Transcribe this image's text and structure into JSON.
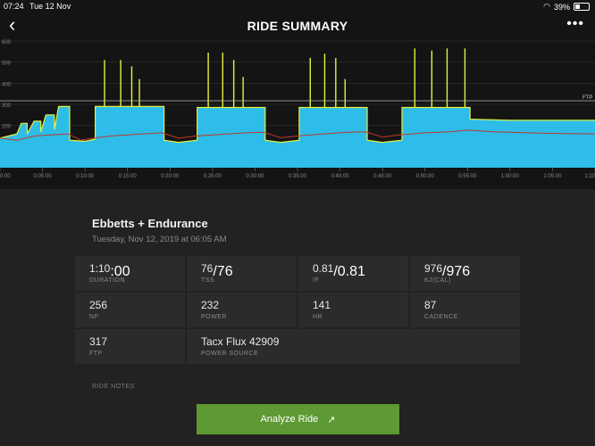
{
  "status_bar": {
    "time": "07:24",
    "date": "Tue 12 Nov",
    "battery": "39%",
    "battery_level": 0.39
  },
  "header": {
    "title": "RIDE SUMMARY",
    "back_icon": "chevron-left-icon",
    "more_icon": "more-horizontal-icon"
  },
  "chart_data": {
    "type": "area",
    "ylim": [
      0,
      600
    ],
    "y_ticks": [
      "600",
      "500",
      "400",
      "300",
      "200"
    ],
    "x_ticks": [
      "0:00",
      "0:05:00",
      "0:10:00",
      "0:15:00",
      "0:20:00",
      "0:25:00",
      "0:30:00",
      "0:35:00",
      "0:40:00",
      "0:45:00",
      "0:50:00",
      "0:55:00",
      "1:00:00",
      "1:05:00",
      "1:10"
    ],
    "xlim_minutes": [
      0,
      70
    ],
    "ftp_label": "FTP",
    "ftp_value": 317,
    "colors": {
      "power": "#2ebde8",
      "power_line": "#e4f33c",
      "hr": "#c0392b",
      "ftp": "#bbbbbb"
    },
    "power_segments": [
      [
        0,
        140
      ],
      [
        1,
        150
      ],
      [
        2,
        160
      ],
      [
        2.5,
        210
      ],
      [
        3.2,
        210
      ],
      [
        3.2,
        160
      ],
      [
        4,
        220
      ],
      [
        4.8,
        220
      ],
      [
        4.8,
        170
      ],
      [
        5.4,
        250
      ],
      [
        6.4,
        250
      ],
      [
        6.4,
        180
      ],
      [
        6.9,
        290
      ],
      [
        8.2,
        290
      ],
      [
        8.2,
        130
      ],
      [
        10,
        125
      ],
      [
        11.2,
        135
      ],
      [
        11.2,
        290
      ],
      [
        19.3,
        290
      ],
      [
        19.3,
        130
      ],
      [
        21,
        120
      ],
      [
        23.2,
        130
      ],
      [
        23.2,
        285
      ],
      [
        31.2,
        285
      ],
      [
        31.2,
        130
      ],
      [
        33,
        120
      ],
      [
        35.2,
        130
      ],
      [
        35.2,
        285
      ],
      [
        43.2,
        285
      ],
      [
        43.2,
        130
      ],
      [
        45,
        120
      ],
      [
        47.3,
        130
      ],
      [
        47.3,
        285
      ],
      [
        55.3,
        285
      ],
      [
        55.3,
        230
      ],
      [
        60,
        225
      ],
      [
        65,
        225
      ],
      [
        70,
        225
      ]
    ],
    "spikes": [
      [
        12.3,
        510
      ],
      [
        14.2,
        510
      ],
      [
        15.5,
        480
      ],
      [
        16.4,
        420
      ],
      [
        24.5,
        545
      ],
      [
        26.2,
        545
      ],
      [
        27.5,
        510
      ],
      [
        28.6,
        430
      ],
      [
        36.5,
        520
      ],
      [
        38.2,
        540
      ],
      [
        39.5,
        520
      ],
      [
        40.6,
        420
      ],
      [
        48.8,
        565
      ],
      [
        50.8,
        555
      ],
      [
        52.6,
        565
      ],
      [
        54.7,
        565
      ]
    ],
    "hr": [
      [
        0,
        140
      ],
      [
        2,
        130
      ],
      [
        4,
        150
      ],
      [
        6,
        155
      ],
      [
        8,
        160
      ],
      [
        9.5,
        130
      ],
      [
        11,
        140
      ],
      [
        13,
        150
      ],
      [
        16,
        158
      ],
      [
        19,
        165
      ],
      [
        21,
        140
      ],
      [
        23,
        150
      ],
      [
        26,
        158
      ],
      [
        29,
        165
      ],
      [
        31,
        168
      ],
      [
        33,
        142
      ],
      [
        35,
        150
      ],
      [
        38,
        160
      ],
      [
        41,
        168
      ],
      [
        43,
        170
      ],
      [
        45,
        145
      ],
      [
        47,
        155
      ],
      [
        50,
        165
      ],
      [
        53,
        170
      ],
      [
        55,
        178
      ],
      [
        58,
        170
      ],
      [
        62,
        165
      ],
      [
        66,
        162
      ],
      [
        70,
        160
      ]
    ]
  },
  "ride": {
    "name": "Ebbetts + Endurance",
    "date": "Tuesday, Nov 12, 2019 at 06:05 AM"
  },
  "metrics": [
    {
      "value": "1:10",
      "value_small": ":00",
      "label": "DURATION"
    },
    {
      "value": "76",
      "value_small": "/76",
      "label": "TSS"
    },
    {
      "value": "0.81",
      "value_small": "/0.81",
      "label": "IF"
    },
    {
      "value": "976",
      "value_small": "/976",
      "label": "kJ(Cal)"
    },
    {
      "value": "256",
      "value_small": "",
      "label": "NP"
    },
    {
      "value": "232",
      "value_small": "",
      "label": "POWER"
    },
    {
      "value": "141",
      "value_small": "",
      "label": "HR"
    },
    {
      "value": "87",
      "value_small": "",
      "label": "CADENCE"
    },
    {
      "value": "317",
      "value_small": "",
      "label": "FTP"
    },
    {
      "value": "Tacx Flux 42909",
      "value_small": "",
      "label": "POWER SOURCE"
    }
  ],
  "notes_label": "RIDE NOTES",
  "analyze_button": {
    "label": "Analyze Ride",
    "icon": "external-link-icon"
  }
}
